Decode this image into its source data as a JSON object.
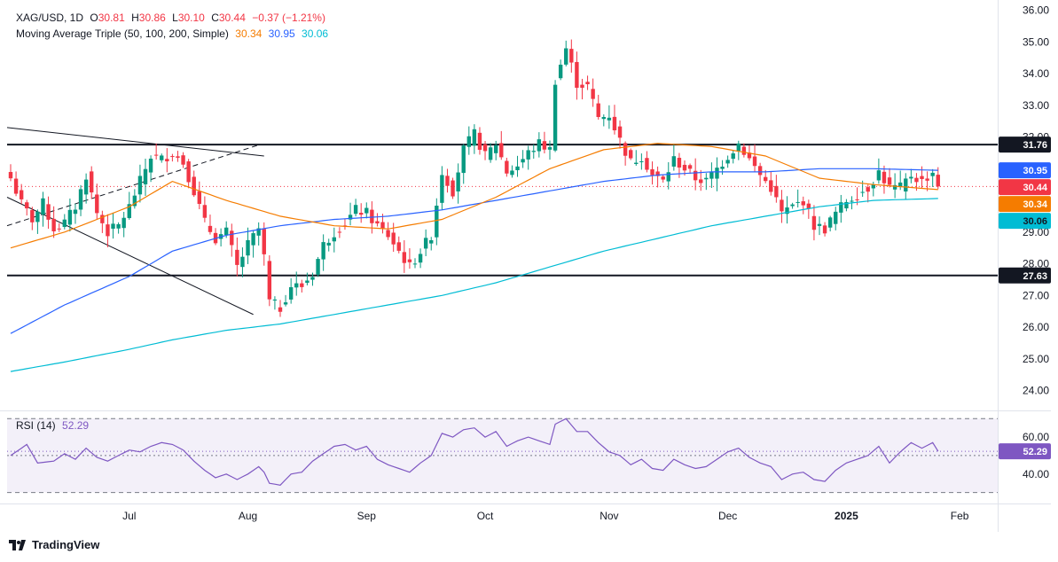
{
  "header": {
    "symbol": "XAG/USD, 1D",
    "open_label": "O",
    "open": "30.81",
    "high_label": "H",
    "high": "30.86",
    "low_label": "L",
    "low": "30.10",
    "close_label": "C",
    "close": "30.44",
    "change": "−0.37 (−1.21%)",
    "ma_label": "Moving Average Triple (50, 100, 200, Simple)",
    "ma50": "30.34",
    "ma100": "30.95",
    "ma200": "30.06"
  },
  "rsi_header": {
    "label": "RSI (14)",
    "value": "52.29"
  },
  "brand": "TradingView",
  "colors": {
    "up": "#089981",
    "down": "#f23645",
    "ma50": "#f57c00",
    "ma100": "#2962ff",
    "ma200": "#00bcd4",
    "rsi": "#7e57c2",
    "level": "#131722"
  },
  "chart_data": [
    {
      "type": "candlestick",
      "title": "XAG/USD, 1D",
      "y_ticks": [
        "24.00",
        "25.00",
        "26.00",
        "27.00",
        "28.00",
        "29.00",
        "30.00",
        "31.00",
        "32.00",
        "33.00",
        "34.00",
        "35.00",
        "36.00"
      ],
      "ylim": [
        23.4,
        36.1
      ],
      "x_labels": [
        "Jul",
        "Aug",
        "Sep",
        "Oct",
        "Nov",
        "Dec",
        "2025",
        "Feb"
      ],
      "x_label_index": [
        22,
        44,
        66,
        88,
        111,
        133,
        155,
        176
      ],
      "n_bars": 186,
      "last_price": 30.44,
      "horizontal_levels": [
        {
          "label": "31.76",
          "value": 31.76
        },
        {
          "label": "27.63",
          "value": 27.63
        }
      ],
      "price_tags": [
        {
          "label": "31.76",
          "value": 31.76,
          "kind": "level"
        },
        {
          "label": "30.95",
          "value": 30.95,
          "kind": "ma100"
        },
        {
          "label": "30.44",
          "value": 30.44,
          "kind": "last"
        },
        {
          "label": "30.34",
          "value": 30.34,
          "kind": "ma50"
        },
        {
          "label": "30.06",
          "value": 30.06,
          "kind": "ma200"
        },
        {
          "label": "27.63",
          "value": 27.63,
          "kind": "level"
        }
      ],
      "close_keypoints": [
        [
          0,
          30.7
        ],
        [
          2,
          29.9
        ],
        [
          4,
          29.4
        ],
        [
          6,
          29.9
        ],
        [
          8,
          29.1
        ],
        [
          10,
          29.3
        ],
        [
          12,
          29.8
        ],
        [
          14,
          30.8
        ],
        [
          16,
          29.6
        ],
        [
          18,
          29.0
        ],
        [
          20,
          29.2
        ],
        [
          22,
          29.8
        ],
        [
          24,
          30.6
        ],
        [
          26,
          31.4
        ],
        [
          28,
          31.3
        ],
        [
          30,
          31.5
        ],
        [
          32,
          31.2
        ],
        [
          34,
          30.3
        ],
        [
          36,
          29.3
        ],
        [
          38,
          28.8
        ],
        [
          40,
          29.0
        ],
        [
          42,
          27.9
        ],
        [
          44,
          28.6
        ],
        [
          46,
          29.1
        ],
        [
          47,
          28.2
        ],
        [
          48,
          26.8
        ],
        [
          50,
          26.6
        ],
        [
          52,
          27.3
        ],
        [
          54,
          27.3
        ],
        [
          56,
          27.7
        ],
        [
          58,
          28.6
        ],
        [
          60,
          29.0
        ],
        [
          62,
          29.3
        ],
        [
          64,
          29.7
        ],
        [
          66,
          29.6
        ],
        [
          68,
          29.2
        ],
        [
          70,
          28.9
        ],
        [
          72,
          28.4
        ],
        [
          74,
          27.9
        ],
        [
          76,
          28.4
        ],
        [
          78,
          28.9
        ],
        [
          80,
          30.9
        ],
        [
          82,
          30.3
        ],
        [
          84,
          31.6
        ],
        [
          86,
          32.1
        ],
        [
          88,
          31.4
        ],
        [
          90,
          31.8
        ],
        [
          92,
          30.9
        ],
        [
          94,
          31.1
        ],
        [
          96,
          31.5
        ],
        [
          98,
          31.8
        ],
        [
          100,
          31.6
        ],
        [
          101,
          33.8
        ],
        [
          103,
          34.8
        ],
        [
          105,
          33.7
        ],
        [
          107,
          33.6
        ],
        [
          109,
          32.6
        ],
        [
          111,
          32.7
        ],
        [
          113,
          31.9
        ],
        [
          115,
          31.2
        ],
        [
          117,
          31.4
        ],
        [
          119,
          30.8
        ],
        [
          121,
          30.6
        ],
        [
          123,
          31.3
        ],
        [
          125,
          31.0
        ],
        [
          127,
          30.7
        ],
        [
          129,
          30.6
        ],
        [
          131,
          31.0
        ],
        [
          133,
          31.4
        ],
        [
          135,
          31.8
        ],
        [
          137,
          31.3
        ],
        [
          139,
          30.8
        ],
        [
          141,
          30.4
        ],
        [
          143,
          29.6
        ],
        [
          145,
          29.8
        ],
        [
          147,
          30.0
        ],
        [
          149,
          29.2
        ],
        [
          151,
          29.1
        ],
        [
          153,
          29.6
        ],
        [
          155,
          30.0
        ],
        [
          157,
          30.2
        ],
        [
          159,
          30.4
        ],
        [
          161,
          30.9
        ],
        [
          163,
          30.4
        ],
        [
          165,
          30.4
        ],
        [
          167,
          30.8
        ],
        [
          169,
          30.6
        ],
        [
          171,
          30.9
        ],
        [
          172,
          30.44
        ]
      ],
      "ma50_keypoints": [
        [
          0,
          28.5
        ],
        [
          10,
          29.0
        ],
        [
          22,
          29.8
        ],
        [
          30,
          30.6
        ],
        [
          40,
          30.0
        ],
        [
          50,
          29.5
        ],
        [
          60,
          29.2
        ],
        [
          70,
          29.1
        ],
        [
          80,
          29.4
        ],
        [
          90,
          30.1
        ],
        [
          100,
          31.0
        ],
        [
          110,
          31.6
        ],
        [
          120,
          31.8
        ],
        [
          130,
          31.7
        ],
        [
          140,
          31.4
        ],
        [
          150,
          30.7
        ],
        [
          160,
          30.5
        ],
        [
          172,
          30.34
        ]
      ],
      "ma100_keypoints": [
        [
          0,
          25.8
        ],
        [
          10,
          26.7
        ],
        [
          22,
          27.6
        ],
        [
          30,
          28.4
        ],
        [
          40,
          28.9
        ],
        [
          50,
          29.2
        ],
        [
          60,
          29.4
        ],
        [
          70,
          29.5
        ],
        [
          80,
          29.7
        ],
        [
          90,
          30.0
        ],
        [
          100,
          30.3
        ],
        [
          110,
          30.6
        ],
        [
          120,
          30.8
        ],
        [
          130,
          30.9
        ],
        [
          140,
          30.9
        ],
        [
          150,
          31.0
        ],
        [
          160,
          31.0
        ],
        [
          172,
          30.95
        ]
      ],
      "ma200_keypoints": [
        [
          0,
          24.6
        ],
        [
          10,
          24.9
        ],
        [
          22,
          25.3
        ],
        [
          30,
          25.6
        ],
        [
          40,
          25.9
        ],
        [
          50,
          26.1
        ],
        [
          60,
          26.4
        ],
        [
          70,
          26.7
        ],
        [
          80,
          27.0
        ],
        [
          90,
          27.4
        ],
        [
          100,
          27.9
        ],
        [
          110,
          28.4
        ],
        [
          120,
          28.8
        ],
        [
          130,
          29.2
        ],
        [
          140,
          29.5
        ],
        [
          150,
          29.8
        ],
        [
          160,
          30.0
        ],
        [
          172,
          30.06
        ]
      ]
    },
    {
      "type": "line",
      "title": "RSI (14)",
      "y_ticks": [
        "40.00",
        "60.00"
      ],
      "ylim": [
        25,
        73
      ],
      "bands": [
        30,
        50,
        70
      ],
      "last_value": 52.29,
      "value_tag": "52.29",
      "keypoints": [
        [
          0,
          50
        ],
        [
          3,
          56
        ],
        [
          5,
          46
        ],
        [
          8,
          47
        ],
        [
          10,
          51
        ],
        [
          12,
          48
        ],
        [
          14,
          54
        ],
        [
          16,
          49
        ],
        [
          18,
          47
        ],
        [
          20,
          50
        ],
        [
          22,
          53
        ],
        [
          24,
          52
        ],
        [
          26,
          55
        ],
        [
          28,
          57
        ],
        [
          30,
          56
        ],
        [
          32,
          53
        ],
        [
          34,
          47
        ],
        [
          36,
          42
        ],
        [
          38,
          38
        ],
        [
          40,
          40
        ],
        [
          42,
          37
        ],
        [
          44,
          40
        ],
        [
          46,
          44
        ],
        [
          47,
          41
        ],
        [
          48,
          35
        ],
        [
          50,
          34
        ],
        [
          52,
          40
        ],
        [
          54,
          41
        ],
        [
          56,
          47
        ],
        [
          58,
          51
        ],
        [
          60,
          55
        ],
        [
          62,
          56
        ],
        [
          64,
          53
        ],
        [
          66,
          55
        ],
        [
          68,
          48
        ],
        [
          70,
          45
        ],
        [
          72,
          43
        ],
        [
          74,
          41
        ],
        [
          76,
          46
        ],
        [
          78,
          50
        ],
        [
          80,
          62
        ],
        [
          82,
          60
        ],
        [
          84,
          64
        ],
        [
          86,
          65
        ],
        [
          88,
          60
        ],
        [
          90,
          63
        ],
        [
          92,
          55
        ],
        [
          94,
          58
        ],
        [
          96,
          60
        ],
        [
          98,
          58
        ],
        [
          100,
          56
        ],
        [
          101,
          67
        ],
        [
          103,
          70
        ],
        [
          105,
          63
        ],
        [
          107,
          63
        ],
        [
          109,
          57
        ],
        [
          111,
          52
        ],
        [
          113,
          50
        ],
        [
          115,
          45
        ],
        [
          117,
          48
        ],
        [
          119,
          43
        ],
        [
          121,
          42
        ],
        [
          123,
          48
        ],
        [
          125,
          45
        ],
        [
          127,
          43
        ],
        [
          129,
          44
        ],
        [
          131,
          48
        ],
        [
          133,
          52
        ],
        [
          135,
          54
        ],
        [
          137,
          49
        ],
        [
          139,
          46
        ],
        [
          141,
          44
        ],
        [
          143,
          37
        ],
        [
          145,
          40
        ],
        [
          147,
          41
        ],
        [
          149,
          37
        ],
        [
          151,
          36
        ],
        [
          153,
          42
        ],
        [
          155,
          46
        ],
        [
          157,
          48
        ],
        [
          159,
          50
        ],
        [
          161,
          55
        ],
        [
          163,
          46
        ],
        [
          165,
          52
        ],
        [
          167,
          57
        ],
        [
          169,
          54
        ],
        [
          171,
          57
        ],
        [
          172,
          52.29
        ]
      ]
    }
  ]
}
